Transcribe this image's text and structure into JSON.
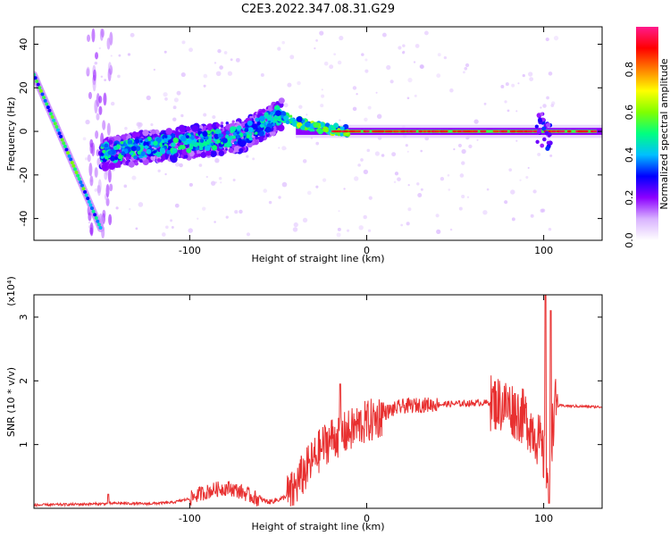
{
  "figure": {
    "title": "C2E3.2022.347.08.31.G29"
  },
  "chart_data": [
    {
      "type": "heatmap",
      "xlabel": "Height of straight line (km)",
      "ylabel": "Frequency (Hz)",
      "xlim": [
        -188,
        133
      ],
      "ylim": [
        -50,
        48
      ],
      "xticks": [
        -100,
        0,
        100
      ],
      "xtick_labels": [
        "-100",
        "0",
        "100"
      ],
      "yticks": [
        -40,
        -20,
        0,
        20,
        40
      ],
      "ytick_labels": [
        "-40",
        "-20",
        "0",
        "20",
        "40"
      ],
      "colorbar": {
        "label": "Normalized spectral amplitude",
        "range": [
          0,
          1
        ],
        "ticks": [
          0.0,
          0.2,
          0.4,
          0.6,
          0.8
        ],
        "tick_labels": [
          "0.0",
          "0.2",
          "0.4",
          "0.6",
          "0.8"
        ],
        "colormap": [
          "#ffffff",
          "#d9b3ff",
          "#8c00ff",
          "#0000ff",
          "#00bfff",
          "#00ff80",
          "#80ff00",
          "#ffff00",
          "#ff8000",
          "#ff0000",
          "#ff1a8c"
        ]
      },
      "features": [
        {
          "description_key": "descending_line",
          "x": [
            -188,
            -150
          ],
          "y": [
            26,
            -45
          ],
          "amplitude": 0.45
        },
        {
          "description_key": "rising_band",
          "x": [
            -150,
            -70,
            -48
          ],
          "y": [
            -10,
            -2,
            8
          ],
          "amplitude": 0.35
        },
        {
          "description_key": "flat_band",
          "x": [
            -40,
            133
          ],
          "y": [
            0,
            0
          ],
          "amplitude": 0.9
        }
      ]
    },
    {
      "type": "line",
      "xlabel": "Height of straight line (km)",
      "ylabel": "SNR (10 * v/v)",
      "yscale_label": "(x10⁴)",
      "xlim": [
        -188,
        133
      ],
      "ylim": [
        0,
        3.35
      ],
      "xticks": [
        -100,
        0,
        100
      ],
      "xtick_labels": [
        "-100",
        "0",
        "100"
      ],
      "yticks": [
        1,
        2,
        3
      ],
      "ytick_labels": [
        "1",
        "2",
        "3"
      ],
      "color": "#e83030",
      "x": [
        -188,
        -170,
        -150,
        -140,
        -125,
        -110,
        -100,
        -95,
        -85,
        -78,
        -70,
        -62,
        -55,
        -48,
        -42,
        -38,
        -33,
        -28,
        -24,
        -20,
        -15,
        -10,
        -5,
        0,
        5,
        10,
        20,
        30,
        40,
        50,
        60,
        70,
        75,
        80,
        85,
        90,
        95,
        98,
        100,
        102,
        104,
        106,
        110,
        120,
        133
      ],
      "y": [
        0.05,
        0.06,
        0.07,
        0.08,
        0.07,
        0.09,
        0.15,
        0.22,
        0.3,
        0.32,
        0.25,
        0.15,
        0.1,
        0.15,
        0.25,
        0.45,
        0.65,
        0.85,
        1.0,
        1.1,
        1.15,
        1.2,
        1.3,
        1.35,
        1.4,
        1.5,
        1.6,
        1.62,
        1.63,
        1.64,
        1.65,
        1.66,
        1.64,
        1.6,
        1.5,
        1.4,
        1.2,
        1.0,
        0.8,
        0.5,
        0.9,
        1.6,
        1.61,
        1.6,
        1.59
      ]
    }
  ]
}
